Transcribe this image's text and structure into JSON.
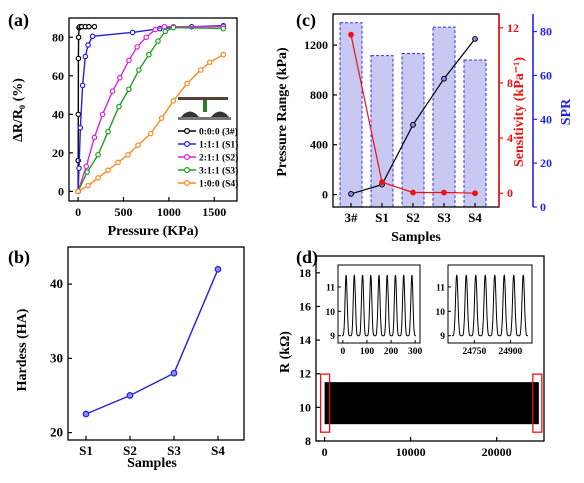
{
  "chart_data": [
    {
      "id": "a",
      "type": "line",
      "panel_label": "(a)",
      "title": "",
      "xlabel": "Pressure (KPa)",
      "ylabel": "ΔR/R₀ (%)",
      "xlim": [
        -100,
        1750
      ],
      "ylim": [
        -5,
        90
      ],
      "xticks": [
        0,
        500,
        1000,
        1500
      ],
      "yticks": [
        0,
        20,
        40,
        60,
        80
      ],
      "legend_position": "center-right",
      "series": [
        {
          "name": "0:0:0 (3#)",
          "color": "#000000",
          "x": [
            0,
            1,
            2,
            4,
            6,
            10,
            20,
            40,
            80,
            120,
            180
          ],
          "y": [
            0,
            16,
            40,
            69,
            80,
            85,
            85.5,
            85.5,
            85.5,
            85.5,
            85.5
          ]
        },
        {
          "name": "1:1:1 (S1)",
          "color": "#2222dd",
          "x": [
            0,
            10,
            25,
            50,
            80,
            110,
            160,
            600,
            900,
            1250,
            1600
          ],
          "y": [
            0,
            12,
            33,
            55,
            70,
            76,
            80.5,
            82.5,
            84.5,
            85.5,
            86
          ]
        },
        {
          "name": "2:1:1 (S2)",
          "color": "#dd22dd",
          "x": [
            0,
            90,
            180,
            270,
            380,
            460,
            560,
            650,
            750,
            850,
            950,
            1050,
            1600
          ],
          "y": [
            0,
            13,
            28,
            40,
            52,
            59,
            68,
            75,
            80,
            84,
            85.5,
            85.5,
            85.5
          ]
        },
        {
          "name": "3:1:1 (S3)",
          "color": "#22a022",
          "x": [
            0,
            100,
            220,
            330,
            450,
            560,
            670,
            780,
            880,
            960,
            1050,
            1600
          ],
          "y": [
            0,
            10,
            19,
            31,
            44,
            53,
            63,
            71,
            78,
            83,
            85,
            84.5
          ]
        },
        {
          "name": "1:0:0 (S4)",
          "color": "#ff8822",
          "x": [
            0,
            110,
            220,
            330,
            440,
            550,
            660,
            800,
            920,
            1050,
            1200,
            1350,
            1450,
            1600
          ],
          "y": [
            0,
            3,
            7,
            11,
            15,
            19,
            24,
            30,
            38,
            47,
            56,
            63,
            67,
            71
          ]
        }
      ]
    },
    {
      "id": "b",
      "type": "line",
      "panel_label": "(b)",
      "title": "",
      "xlabel": "Samples",
      "ylabel": "Hardess (HA)",
      "categories": [
        "S1",
        "S2",
        "S3",
        "S4"
      ],
      "ylim": [
        19,
        45
      ],
      "yticks": [
        20,
        30,
        40
      ],
      "series": [
        {
          "name": "",
          "color": "#2222dd",
          "values": [
            22.5,
            25,
            28,
            42
          ]
        }
      ]
    },
    {
      "id": "c",
      "type": "bar",
      "panel_label": "(c)",
      "title": "",
      "xlabel": "Samples",
      "ylabel_left": "Pressure Range (kPa)",
      "ylabel_right1": "Sensitivity (kPa⁻¹)",
      "ylabel_right2": "SPR",
      "categories": [
        "3#",
        "S1",
        "S2",
        "S3",
        "S4"
      ],
      "ylim_left": [
        -100,
        1450
      ],
      "yticks_left": [
        0,
        400,
        800,
        1200
      ],
      "ylim_right1": [
        -1,
        13
      ],
      "yticks_right1": [
        0,
        4,
        8,
        12
      ],
      "ylim_right2": [
        0,
        88
      ],
      "yticks_right2": [
        0,
        20,
        40,
        60,
        80
      ],
      "series": [
        {
          "name": "Pressure Range",
          "axis": "left",
          "type": "line",
          "color": "#000000",
          "values": [
            5,
            80,
            560,
            930,
            1250
          ]
        },
        {
          "name": "Sensitivity",
          "axis": "right1",
          "type": "line",
          "color": "#ee1111",
          "values": [
            11.5,
            0.8,
            0.05,
            0.05,
            0.0
          ]
        },
        {
          "name": "SPR",
          "axis": "right2",
          "type": "bar",
          "color": "#c8c8f2",
          "edge_color": "#3333ee",
          "values": [
            84,
            69,
            70,
            82,
            67
          ]
        }
      ]
    },
    {
      "id": "d",
      "type": "line",
      "panel_label": "(d)",
      "title": "",
      "xlabel": "",
      "ylabel": "R (kΩ)",
      "xlim": [
        -1000,
        25500
      ],
      "ylim": [
        8,
        19
      ],
      "xticks": [
        0,
        10000,
        20000
      ],
      "yticks": [
        8,
        10,
        12,
        14,
        16,
        18
      ],
      "series": [
        {
          "name": "",
          "color": "#000000",
          "description_range": [
            9,
            11.5
          ],
          "x_range": [
            0,
            24900
          ]
        }
      ],
      "insets": [
        {
          "xlim": [
            -20,
            320
          ],
          "xticks": [
            0,
            100,
            200,
            300
          ],
          "ylim": [
            8.7,
            11.9
          ],
          "yticks": [
            9,
            10,
            11
          ],
          "peak_min": 9,
          "peak_max": 11.5,
          "cycles": 9
        },
        {
          "xlim": [
            24640,
            24990
          ],
          "xticks": [
            24750,
            24900
          ],
          "ylim": [
            8.7,
            11.9
          ],
          "yticks": [
            9,
            10,
            11
          ],
          "peak_min": 9,
          "peak_max": 11.5,
          "cycles": 8
        }
      ]
    }
  ]
}
